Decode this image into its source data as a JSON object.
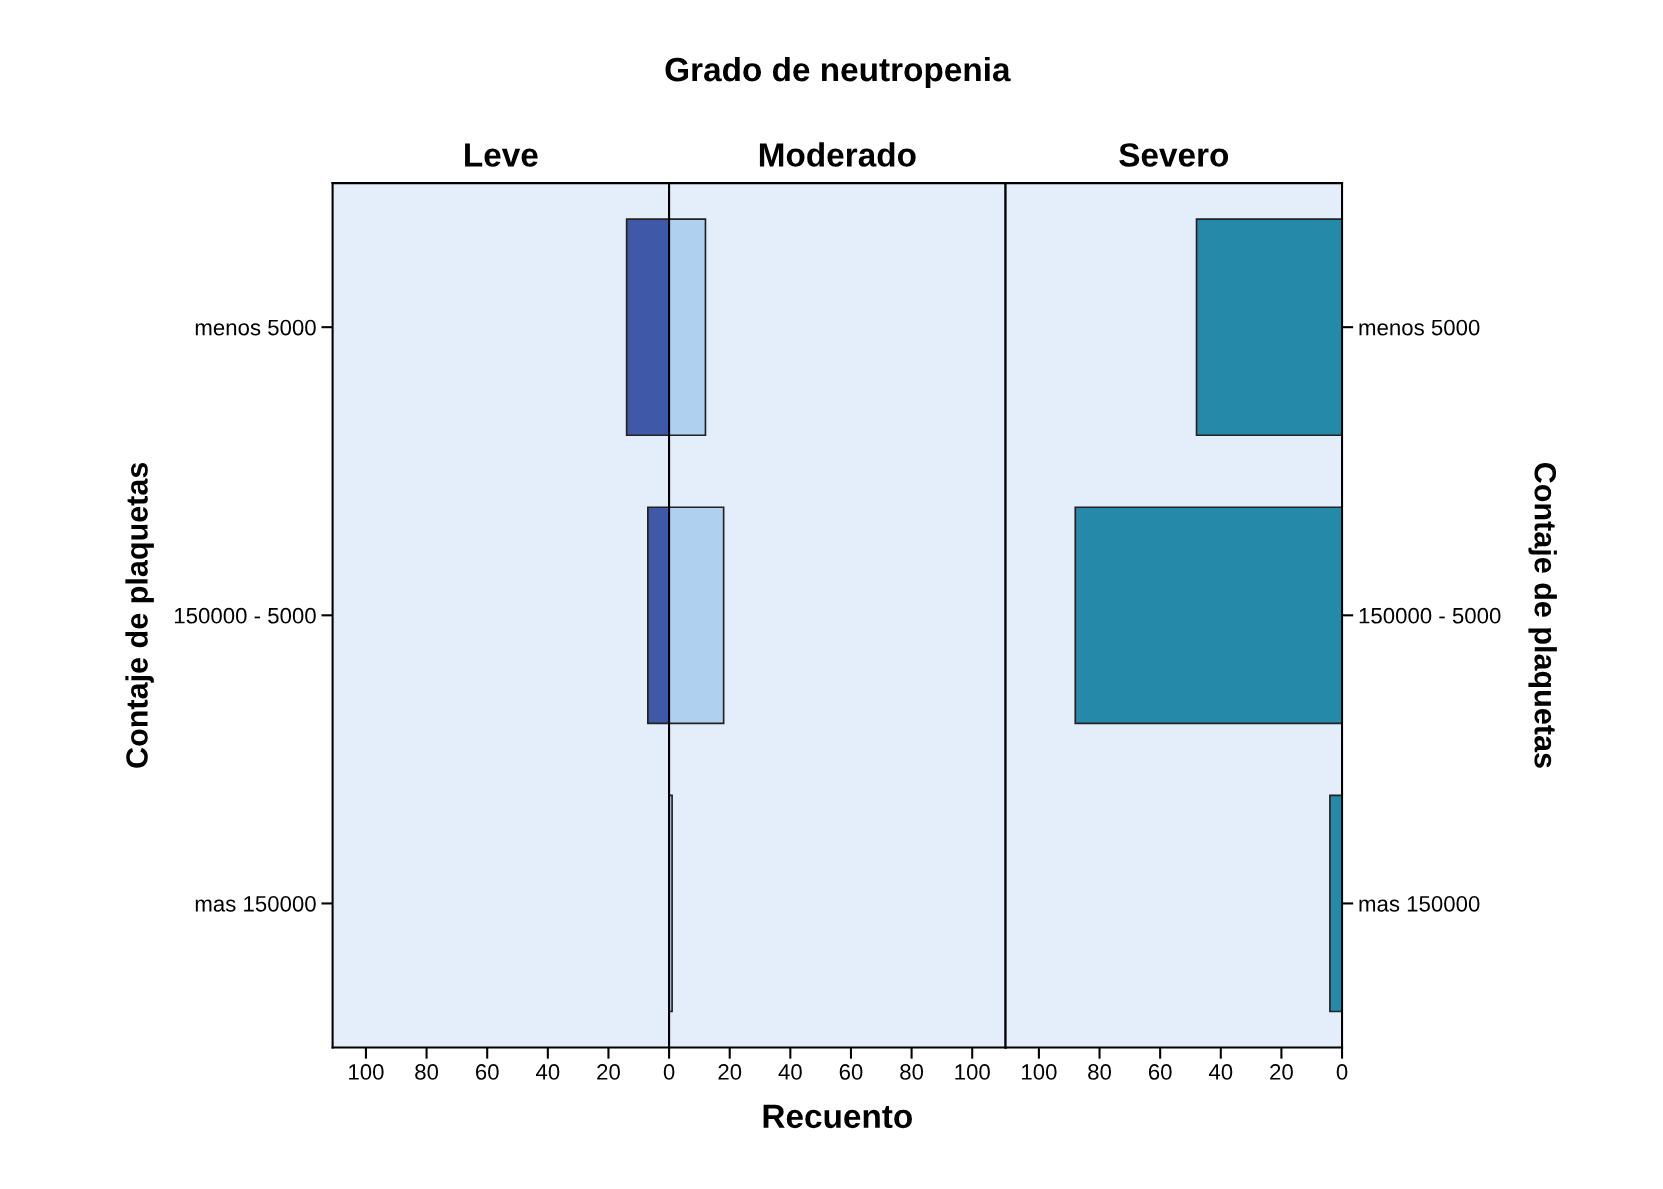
{
  "chart_data": [
    {
      "type": "bar",
      "orientation": "horizontal",
      "title": "Leve",
      "ylabel": "Contaje de plaquetas",
      "categories": [
        "menos 5000",
        "150000 - 5000",
        "mas 150000"
      ],
      "series": [
        {
          "color": "#3f58a8",
          "values": [
            14,
            7,
            null
          ]
        }
      ],
      "xlim": [
        111,
        0
      ],
      "xticks": [
        100,
        80,
        60,
        40,
        20
      ],
      "grid": false,
      "legend": false
    },
    {
      "type": "bar",
      "orientation": "horizontal",
      "title": "Moderado",
      "xlabel": "Recuento",
      "annotations": [
        "Grado de neutropenia"
      ],
      "categories": [
        null,
        null,
        null
      ],
      "series": [
        {
          "color": "#afd0ee",
          "values": [
            12,
            18,
            1
          ]
        }
      ],
      "xlim": [
        0,
        111
      ],
      "xticks": [
        0,
        20,
        40,
        60,
        80,
        100
      ],
      "tick_labels": "x",
      "grid": false,
      "legend": false
    },
    {
      "type": "bar",
      "orientation": "horizontal",
      "title": "Severo",
      "y2label": "Contaje de plaquetas",
      "categories": [
        "menos 5000",
        "150000 - 5000",
        "mas 150000"
      ],
      "series": [
        {
          "color": "#2589aa",
          "values": [
            48,
            88,
            4
          ]
        }
      ],
      "xlim": [
        111,
        0
      ],
      "xticks": [
        100,
        80,
        60,
        40,
        20,
        0
      ],
      "grid": false,
      "legend": false
    }
  ]
}
